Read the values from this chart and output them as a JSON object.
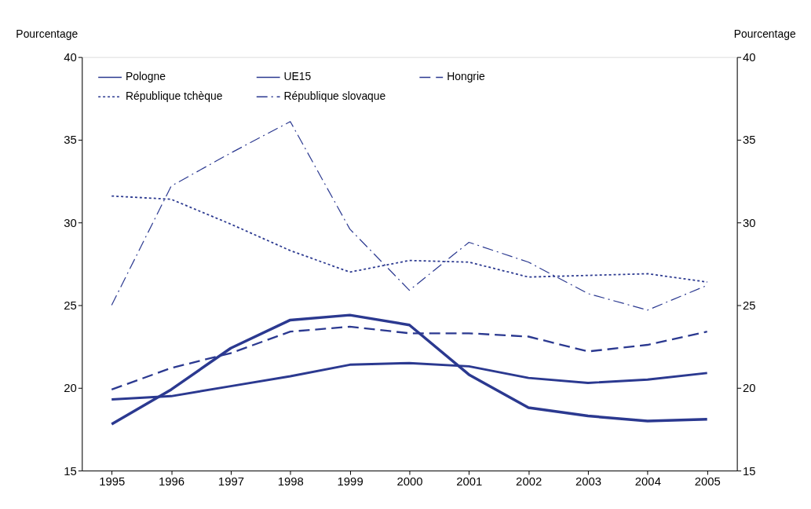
{
  "chart_data": {
    "type": "line",
    "ylabel": "Pourcentage",
    "y2label": "Pourcentage",
    "categories": [
      "1995",
      "1996",
      "1997",
      "1998",
      "1999",
      "2000",
      "2001",
      "2002",
      "2003",
      "2004",
      "2005"
    ],
    "ylim": [
      15,
      40
    ],
    "yticks": [
      15,
      20,
      25,
      30,
      35,
      40
    ],
    "y2lim": [
      15,
      40
    ],
    "y2ticks": [
      15,
      20,
      25,
      30,
      35,
      40
    ],
    "grid": false,
    "legend": "top left",
    "marker": "none",
    "series": [
      {
        "name": "Pologne",
        "color": "#2b3990",
        "line_style": "solid",
        "values": [
          17.8,
          19.9,
          22.4,
          24.1,
          24.4,
          23.8,
          20.8,
          18.8,
          18.3,
          18.0,
          18.1
        ]
      },
      {
        "name": "UE15",
        "color": "#2b3990",
        "line_style": "solid",
        "values": [
          19.3,
          19.5,
          20.1,
          20.7,
          21.4,
          21.5,
          21.3,
          20.6,
          20.3,
          20.5,
          20.9
        ]
      },
      {
        "name": "Hongrie",
        "color": "#2b3990",
        "line_style": "dashed",
        "values": [
          19.9,
          21.2,
          22.1,
          23.4,
          23.7,
          23.3,
          23.3,
          23.1,
          22.2,
          22.6,
          23.4
        ]
      },
      {
        "name": "République tchèque",
        "color": "#2b3990",
        "line_style": "dotted",
        "values": [
          31.6,
          31.4,
          29.9,
          28.3,
          27.0,
          27.7,
          27.6,
          26.7,
          26.8,
          26.9,
          26.4
        ]
      },
      {
        "name": "République slovaque",
        "color": "#2b3990",
        "line_style": "dashdot",
        "values": [
          25.0,
          32.2,
          34.2,
          36.1,
          29.6,
          25.9,
          28.8,
          27.6,
          25.7,
          24.7,
          26.2
        ]
      }
    ]
  }
}
